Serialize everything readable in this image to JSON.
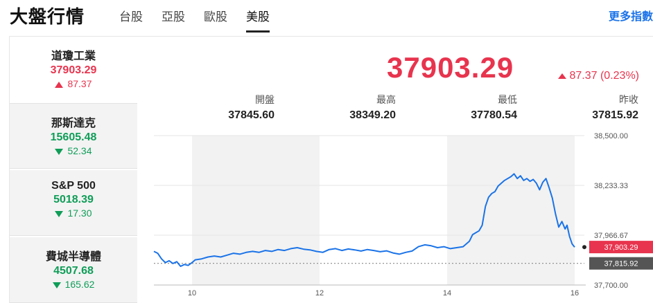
{
  "page_title": "大盤行情",
  "tabs": [
    {
      "label": "台股",
      "active": false
    },
    {
      "label": "亞股",
      "active": false
    },
    {
      "label": "歐股",
      "active": false
    },
    {
      "label": "美股",
      "active": true
    }
  ],
  "more_label": "更多指數",
  "indices": [
    {
      "name": "道瓊工業",
      "value": "37903.29",
      "change": "87.37",
      "direction": "up",
      "selected": true
    },
    {
      "name": "那斯達克",
      "value": "15605.48",
      "change": "52.34",
      "direction": "down",
      "selected": false
    },
    {
      "name": "S&P 500",
      "value": "5018.39",
      "change": "17.30",
      "direction": "down",
      "selected": false
    },
    {
      "name": "費城半導體",
      "value": "4507.68",
      "change": "165.62",
      "direction": "down",
      "selected": false
    }
  ],
  "selected": {
    "price": "37903.29",
    "change": "87.37 (0.23%)",
    "direction": "up"
  },
  "stats": [
    {
      "label": "開盤",
      "value": "37845.60"
    },
    {
      "label": "最高",
      "value": "38349.20"
    },
    {
      "label": "最低",
      "value": "37780.54"
    },
    {
      "label": "昨收",
      "value": "37815.92"
    }
  ],
  "colors": {
    "up": "#e8344e",
    "down": "#0f9d58",
    "line": "#1a73e8",
    "shade": "#f2f2f2",
    "accent": "#1a73e8"
  },
  "chart_data": {
    "type": "line",
    "x_ticks": [
      "10",
      "12",
      "14",
      "16"
    ],
    "x_range": [
      9.5,
      16
    ],
    "y_ticks": [
      "38,500.00",
      "38,233.33",
      "37,966.67",
      "37,700.00"
    ],
    "y_range": [
      37700,
      38500
    ],
    "current_label": "37,903.29",
    "current_value": 37903.29,
    "prev_close_label": "37,815.92",
    "prev_close_value": 37815.92,
    "shaded_hours": [
      [
        10,
        12
      ],
      [
        14,
        16
      ]
    ],
    "series": [
      {
        "values": [
          [
            9.5,
            37880
          ],
          [
            9.55,
            37870
          ],
          [
            9.6,
            37840
          ],
          [
            9.65,
            37820
          ],
          [
            9.7,
            37830
          ],
          [
            9.75,
            37815
          ],
          [
            9.8,
            37825
          ],
          [
            9.85,
            37800
          ],
          [
            9.9,
            37810
          ],
          [
            9.95,
            37805
          ],
          [
            10.0,
            37820
          ],
          [
            10.05,
            37835
          ],
          [
            10.15,
            37840
          ],
          [
            10.25,
            37850
          ],
          [
            10.35,
            37855
          ],
          [
            10.45,
            37850
          ],
          [
            10.55,
            37860
          ],
          [
            10.65,
            37870
          ],
          [
            10.75,
            37865
          ],
          [
            10.85,
            37875
          ],
          [
            10.95,
            37880
          ],
          [
            11.05,
            37875
          ],
          [
            11.15,
            37885
          ],
          [
            11.25,
            37880
          ],
          [
            11.35,
            37890
          ],
          [
            11.45,
            37885
          ],
          [
            11.55,
            37895
          ],
          [
            11.65,
            37900
          ],
          [
            11.75,
            37892
          ],
          [
            11.85,
            37888
          ],
          [
            11.95,
            37880
          ],
          [
            12.05,
            37875
          ],
          [
            12.15,
            37890
          ],
          [
            12.25,
            37895
          ],
          [
            12.35,
            37885
          ],
          [
            12.45,
            37893
          ],
          [
            12.55,
            37888
          ],
          [
            12.65,
            37882
          ],
          [
            12.75,
            37890
          ],
          [
            12.85,
            37885
          ],
          [
            12.95,
            37878
          ],
          [
            13.05,
            37883
          ],
          [
            13.15,
            37872
          ],
          [
            13.25,
            37865
          ],
          [
            13.35,
            37875
          ],
          [
            13.45,
            37882
          ],
          [
            13.55,
            37905
          ],
          [
            13.65,
            37915
          ],
          [
            13.75,
            37910
          ],
          [
            13.85,
            37900
          ],
          [
            13.95,
            37905
          ],
          [
            14.05,
            37895
          ],
          [
            14.15,
            37900
          ],
          [
            14.25,
            37905
          ],
          [
            14.35,
            37935
          ],
          [
            14.4,
            37970
          ],
          [
            14.45,
            37980
          ],
          [
            14.5,
            37990
          ],
          [
            14.55,
            38020
          ],
          [
            14.6,
            38120
          ],
          [
            14.65,
            38170
          ],
          [
            14.7,
            38190
          ],
          [
            14.75,
            38200
          ],
          [
            14.8,
            38230
          ],
          [
            14.9,
            38260
          ],
          [
            15.0,
            38280
          ],
          [
            15.05,
            38295
          ],
          [
            15.1,
            38270
          ],
          [
            15.15,
            38285
          ],
          [
            15.2,
            38260
          ],
          [
            15.25,
            38270
          ],
          [
            15.3,
            38255
          ],
          [
            15.35,
            38265
          ],
          [
            15.4,
            38245
          ],
          [
            15.45,
            38210
          ],
          [
            15.5,
            38250
          ],
          [
            15.55,
            38270
          ],
          [
            15.6,
            38220
          ],
          [
            15.65,
            38165
          ],
          [
            15.7,
            38080
          ],
          [
            15.75,
            38010
          ],
          [
            15.8,
            38040
          ],
          [
            15.85,
            38000
          ],
          [
            15.88,
            38020
          ],
          [
            15.92,
            37960
          ],
          [
            15.96,
            37920
          ],
          [
            16.0,
            37903
          ]
        ]
      }
    ]
  }
}
